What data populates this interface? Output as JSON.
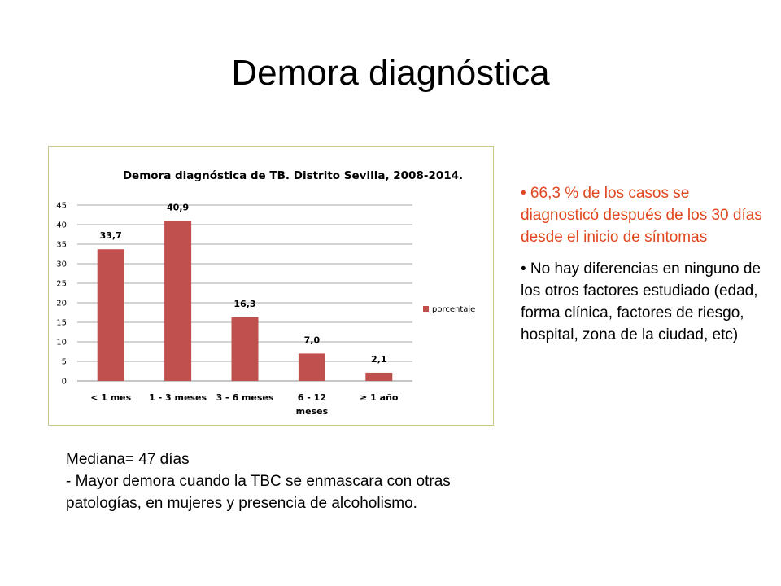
{
  "slide": {
    "title": "Demora diagnóstica"
  },
  "chart_data": {
    "type": "bar",
    "title": "Demora diagnóstica de TB. Distrito Sevilla, 2008-2014.",
    "categories": [
      "< 1 mes",
      "1 - 3 meses",
      "3 - 6 meses",
      "6  - 12 meses",
      "≥ 1 año"
    ],
    "series": [
      {
        "name": "porcentaje",
        "values": [
          33.7,
          40.9,
          16.3,
          7.0,
          2.1
        ],
        "labels": [
          "33,7",
          "40,9",
          "16,3",
          "7,0",
          "2,1"
        ]
      }
    ],
    "ylim": [
      0,
      45
    ],
    "yticks": [
      0,
      5,
      10,
      15,
      20,
      25,
      30,
      35,
      40,
      45
    ],
    "grid": true,
    "legend_position": "right",
    "bar_color": "#c0504d",
    "xlabel": "",
    "ylabel": ""
  },
  "bullets": [
    {
      "text": "• 66,3 % de los casos se diagnosticó después de los 30 días desde el inicio de síntomas",
      "color": "#e0471f"
    },
    {
      "text": "• No hay diferencias en ninguno de los otros factores estudiado (edad, forma clínica, factores de riesgo, hospital, zona de la ciudad, etc)",
      "color": "#000000"
    }
  ],
  "notes": {
    "line1": "Mediana= 47 días",
    "line2": "- Mayor demora cuando la TBC se enmascara con otras patologías, en mujeres y presencia de alcoholismo."
  }
}
